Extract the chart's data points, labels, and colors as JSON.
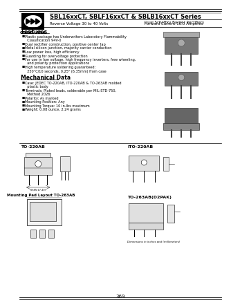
{
  "title_series": "SBL16xxCT, SBLF16xxCT & SBLB16xxCT Series",
  "subtitle1": "Dual Schottky Barrier Rectifiers",
  "subtitle2_left": "Reverse Voltage 30 to 40 Volts",
  "subtitle2_right": "Forward Current 16.0 Amperes",
  "company": "GOOD-ARK",
  "features_title": "Features",
  "feature_lines": [
    "Plastic package has Underwriters Laboratory Flammability",
    "  Classification 94V-0",
    "Dual rectifier construction, positive center tap",
    "Metal silicon junction, majority carrier conduction",
    "Low power loss, high efficiency",
    "Guarding for overvoltage protection",
    "For use in low voltage, high frequency inverters, free wheeling,",
    "  and polarity protection applications",
    "High temperature soldering guaranteed:",
    "  250°C/10 seconds, 0.25\" (6.35mm) from case"
  ],
  "feature_bullets": [
    0,
    2,
    3,
    4,
    5,
    6,
    8
  ],
  "mech_title": "Mechanical Data",
  "mech_lines": [
    "Case: JEDEC TO-220AB, ITO-220AB & TO-263AB molded",
    "  plastic body",
    "Terminals: Plated leads, solderable per MIL-STD-750,",
    "  Method 2026",
    "Polarity: As marked",
    "Mounting Position: Any",
    "Mounting Torque: 10 in-lbs maximum",
    "Weight: 0.08 ounce, 2.24 grams"
  ],
  "mech_bullets": [
    0,
    2,
    4,
    5,
    6,
    7
  ],
  "page_num": "369",
  "bg_color": "#ffffff",
  "label_to220": "TO-220AB",
  "label_ito220": "ITO-220AB",
  "label_to263": "TO-263AB(D2PAK)",
  "label_mp": "Mounting Pad Layout TO-263AB",
  "dim_note": "Dimensions in inches and (millimeters)"
}
